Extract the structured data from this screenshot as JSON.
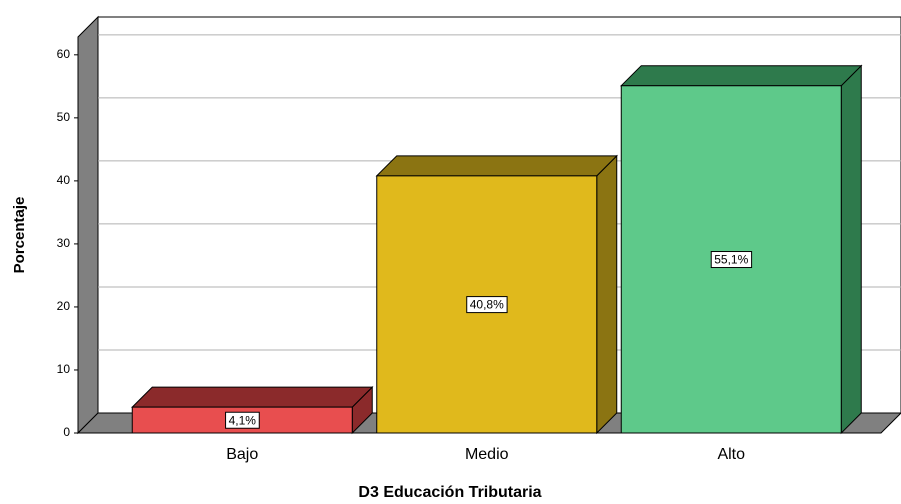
{
  "chart_data": {
    "type": "bar3d",
    "x_label": "D3 Educación Tributaria",
    "y_label": "Porcentaje",
    "categories": [
      "Bajo",
      "Medio",
      "Alto"
    ],
    "values": [
      4.1,
      40.8,
      55.1
    ],
    "value_labels": [
      "4,1%",
      "40,8%",
      "55,1%"
    ],
    "colors": [
      "#e84e4f",
      "#e0b91c",
      "#5ec98a"
    ],
    "side_colors": [
      "#8b2a2b",
      "#8b7412",
      "#2e7a4c"
    ],
    "ylim": [
      0,
      66
    ],
    "yticks": [
      0,
      10,
      20,
      30,
      40,
      50,
      60
    ],
    "grid": true
  }
}
